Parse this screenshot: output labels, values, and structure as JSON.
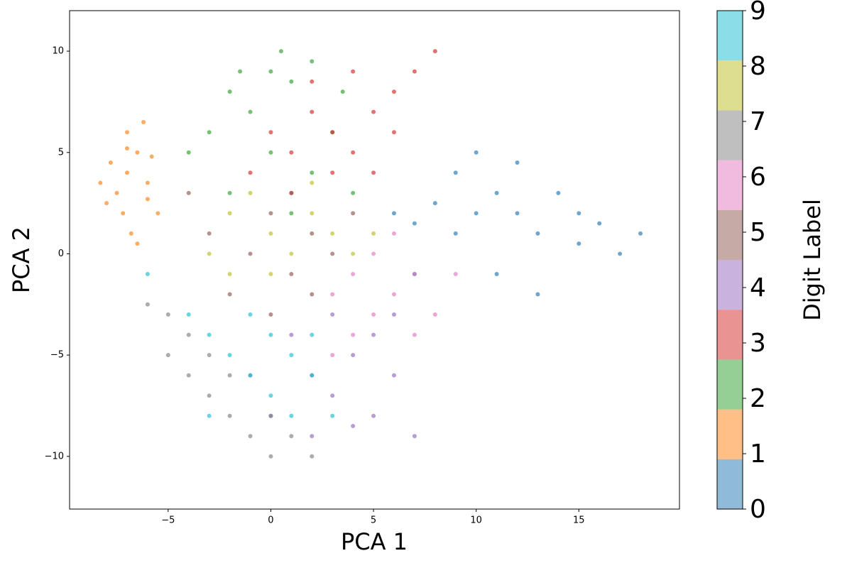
{
  "chart_data": {
    "type": "scatter",
    "x_label": "PCA 1",
    "y_label": "PCA 2",
    "xlim": [
      -9.8,
      19.9
    ],
    "ylim": [
      -12.6,
      12.0
    ],
    "xticks": [
      {
        "value": -5,
        "label": "−5"
      },
      0,
      5,
      10,
      15
    ],
    "yticks": [
      {
        "value": -10,
        "label": "−10"
      },
      {
        "value": -5,
        "label": "−5"
      },
      0,
      5,
      10
    ],
    "series": [
      {
        "color": "#1f77b4",
        "x": [
          6,
          7,
          8,
          9,
          10,
          11,
          12,
          13,
          14,
          15,
          16,
          17,
          18,
          9,
          11,
          13,
          7,
          10,
          12,
          15
        ],
        "values": [
          2,
          1.5,
          2.5,
          1,
          2,
          3,
          2,
          1,
          3,
          2,
          1.5,
          0,
          1,
          4,
          -1,
          -2,
          -1,
          5,
          4.5,
          0.5
        ]
      },
      {
        "color": "#ff7f0e",
        "x": [
          -7,
          -7.5,
          -6.5,
          -8,
          -7,
          -6,
          -6.8,
          -7.8,
          -6.2,
          -5.5,
          -7.2,
          -6.5,
          -8.3,
          -5.8,
          -7,
          -6
        ],
        "values": [
          4,
          3,
          5,
          2.5,
          6,
          3.5,
          1,
          4.5,
          6.5,
          2,
          2,
          0.5,
          3.5,
          4.8,
          5.2,
          2.7
        ]
      },
      {
        "color": "#2ca02c",
        "x": [
          -2,
          0,
          1,
          2,
          -1,
          -3,
          0,
          2,
          3,
          -2,
          1,
          4,
          -4,
          0.5,
          3.5,
          -1.5
        ],
        "values": [
          8,
          9,
          8.5,
          9.5,
          7,
          6,
          5,
          4,
          6,
          3,
          2,
          3,
          5,
          10,
          8,
          9
        ]
      },
      {
        "color": "#d62728",
        "x": [
          0,
          1,
          2,
          3,
          4,
          5,
          6,
          7,
          8,
          1,
          3,
          -1,
          2,
          5,
          6,
          4
        ],
        "values": [
          6,
          5,
          7,
          6,
          5,
          7,
          8,
          9,
          10,
          3,
          4,
          4,
          8.5,
          4,
          6,
          9
        ]
      },
      {
        "color": "#9467bd",
        "x": [
          2,
          3,
          4,
          5,
          6,
          7,
          1,
          3,
          5,
          0,
          2,
          4,
          6,
          -1
        ],
        "values": [
          -6,
          -7,
          -5,
          -8,
          -6,
          -9,
          -4,
          -3,
          -4,
          -8,
          -9,
          -8.5,
          -3,
          -6
        ]
      },
      {
        "color": "#8c564b",
        "x": [
          -3,
          -1,
          0,
          1,
          2,
          3,
          -2,
          0,
          4,
          -4,
          1,
          2
        ],
        "values": [
          1,
          0,
          2,
          -1,
          1,
          0,
          -2,
          -3,
          2,
          3,
          3,
          -2
        ]
      },
      {
        "color": "#e377c2",
        "x": [
          3,
          4,
          5,
          6,
          7,
          8,
          5,
          6,
          3,
          4,
          9,
          7
        ],
        "values": [
          -2,
          -1,
          -3,
          -2,
          -4,
          -3,
          0,
          1,
          -5,
          -4,
          -1,
          -1
        ]
      },
      {
        "color": "#7f7f7f",
        "x": [
          -5,
          -4,
          -3,
          -2,
          -1,
          0,
          -4,
          -5,
          -3,
          1,
          2,
          -2,
          0,
          -6
        ],
        "values": [
          -5,
          -6,
          -7,
          -8,
          -9,
          -8,
          -4,
          -3,
          -5,
          -9,
          -10,
          -6,
          -10,
          -2.5
        ]
      },
      {
        "color": "#bcbd22",
        "x": [
          -2,
          0,
          1,
          2,
          3,
          -1,
          4,
          -3,
          0,
          5,
          2,
          -2
        ],
        "values": [
          2,
          1,
          0,
          2,
          1,
          3,
          0,
          0,
          -1,
          1,
          3.5,
          -1
        ]
      },
      {
        "color": "#17becf",
        "x": [
          -4,
          -3,
          -2,
          -1,
          0,
          1,
          2,
          3,
          -1,
          0,
          1,
          -3,
          2,
          -6
        ],
        "values": [
          -3,
          -4,
          -5,
          -6,
          -7,
          -5,
          -6,
          -8,
          -3,
          -4,
          -8,
          -8,
          -4,
          -1
        ]
      }
    ],
    "colorbar": {
      "label": "Digit Label",
      "lim": [
        0,
        9
      ],
      "ticks": [
        0,
        1,
        2,
        3,
        4,
        5,
        6,
        7,
        8,
        9
      ]
    }
  }
}
